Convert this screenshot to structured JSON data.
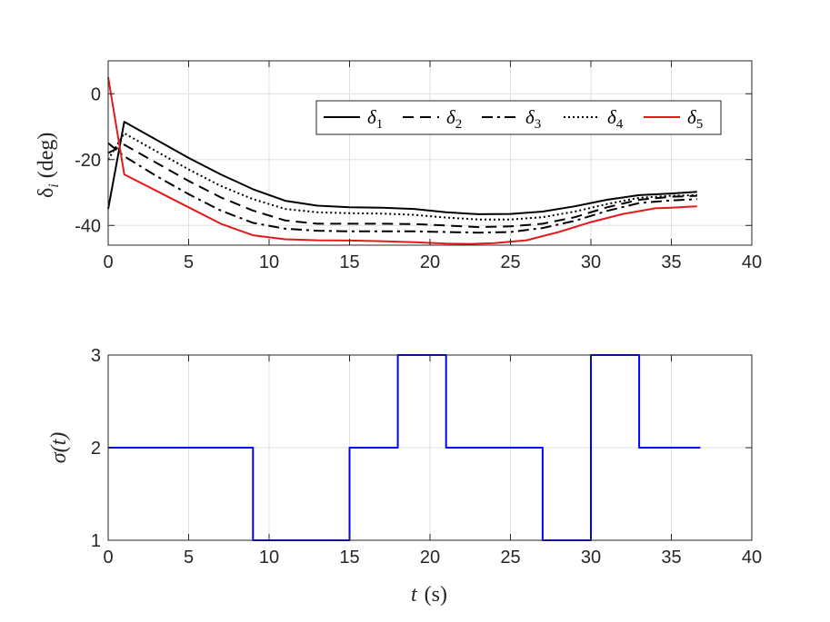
{
  "chart_data": [
    {
      "type": "line",
      "ylabel": "δ_i (deg)",
      "ylabel_parts": {
        "sym": "δ",
        "sub": "i",
        "unit": "(deg)"
      },
      "xlim": [
        0,
        40
      ],
      "ylim": [
        -46,
        10
      ],
      "xticks": [
        0,
        5,
        10,
        15,
        20,
        25,
        30,
        35,
        40
      ],
      "yticks": [
        0,
        -20,
        -40
      ],
      "xtick_labels": [
        "0",
        "5",
        "10",
        "15",
        "20",
        "25",
        "30",
        "35",
        "40"
      ],
      "ytick_labels": [
        "0",
        "-20",
        "-40"
      ],
      "grid": true,
      "legend_position": "top-right",
      "series": [
        {
          "name": "δ1",
          "legend_sub": "1",
          "color": "#000000",
          "dash": "solid",
          "x": [
            0,
            1,
            3,
            5,
            7,
            9,
            11,
            13,
            15,
            17,
            19,
            21,
            23,
            25,
            27,
            29,
            31,
            33,
            35,
            36.6
          ],
          "y": [
            -35,
            -8.5,
            -14,
            -19.5,
            -24.5,
            -29,
            -32.5,
            -34,
            -34.5,
            -34.6,
            -35,
            -36,
            -36.6,
            -36.5,
            -35.8,
            -34.2,
            -32.2,
            -30.8,
            -30.3,
            -29.8
          ]
        },
        {
          "name": "δ2",
          "legend_sub": "2",
          "color": "#000000",
          "dash": "dashed",
          "x": [
            0,
            1,
            3,
            5,
            7,
            9,
            11,
            13,
            15,
            17,
            19,
            21,
            23,
            25,
            27,
            29,
            31,
            33,
            35,
            36.6
          ],
          "y": [
            -18,
            -15.5,
            -21,
            -26.5,
            -31.5,
            -35.5,
            -38.5,
            -39.5,
            -39.5,
            -39.5,
            -39.6,
            -40,
            -40.5,
            -40.3,
            -39.5,
            -37.5,
            -34.5,
            -32.2,
            -31.3,
            -31
          ]
        },
        {
          "name": "δ3",
          "legend_sub": "3",
          "color": "#000000",
          "dash": "dashdot",
          "x": [
            0,
            1,
            3,
            5,
            7,
            9,
            11,
            13,
            15,
            17,
            19,
            21,
            23,
            25,
            27,
            29,
            31,
            33,
            35,
            36.6
          ],
          "y": [
            -15,
            -19,
            -25,
            -30.5,
            -35.5,
            -39.2,
            -41,
            -41.6,
            -41.8,
            -41.8,
            -41.8,
            -42,
            -42.2,
            -42,
            -40.8,
            -38.6,
            -35.6,
            -33.2,
            -32.4,
            -32
          ]
        },
        {
          "name": "δ4",
          "legend_sub": "4",
          "color": "#000000",
          "dash": "dotted",
          "x": [
            0,
            1,
            3,
            5,
            7,
            9,
            11,
            13,
            15,
            17,
            19,
            21,
            23,
            25,
            27,
            29,
            31,
            33,
            35,
            36.6
          ],
          "y": [
            -20,
            -12,
            -17.5,
            -23,
            -28,
            -32,
            -35,
            -36,
            -36.3,
            -36.4,
            -36.8,
            -37.6,
            -38.2,
            -38.2,
            -37.5,
            -35.8,
            -33.5,
            -31.6,
            -31,
            -30.8
          ]
        },
        {
          "name": "δ5",
          "legend_sub": "5",
          "color": "#e31a1c",
          "dash": "solid",
          "x": [
            0,
            1,
            3,
            5,
            7,
            9,
            11,
            13,
            15,
            17,
            19,
            21,
            22.5,
            24,
            26,
            28,
            30,
            32,
            34,
            35,
            36.6
          ],
          "y": [
            5,
            -24.5,
            -29.5,
            -34.5,
            -39.5,
            -43,
            -44.2,
            -44.5,
            -44.6,
            -44.8,
            -45.1,
            -45.5,
            -45.6,
            -45.4,
            -44.5,
            -42,
            -39,
            -36.5,
            -34.8,
            -34.6,
            -34.2
          ]
        }
      ]
    },
    {
      "type": "line",
      "xlabel": "t (s)",
      "xlabel_parts": {
        "sym": "t",
        "unit": "(s)"
      },
      "ylabel": "σ(t)",
      "xlim": [
        0,
        40
      ],
      "ylim": [
        1,
        3
      ],
      "xticks": [
        0,
        5,
        10,
        15,
        20,
        25,
        30,
        35,
        40
      ],
      "yticks": [
        1,
        2,
        3
      ],
      "xtick_labels": [
        "0",
        "5",
        "10",
        "15",
        "20",
        "25",
        "30",
        "35",
        "40"
      ],
      "ytick_labels": [
        "1",
        "2",
        "3"
      ],
      "grid": true,
      "series": [
        {
          "color": "#0000ff",
          "step": true,
          "x": [
            0,
            9,
            9,
            15,
            15,
            18,
            18,
            21,
            21,
            27,
            27,
            30,
            30,
            33,
            33,
            36.8
          ],
          "y": [
            2,
            2,
            1,
            1,
            2,
            2,
            3,
            3,
            2,
            2,
            1,
            1,
            3,
            3,
            2,
            2
          ]
        }
      ]
    }
  ]
}
